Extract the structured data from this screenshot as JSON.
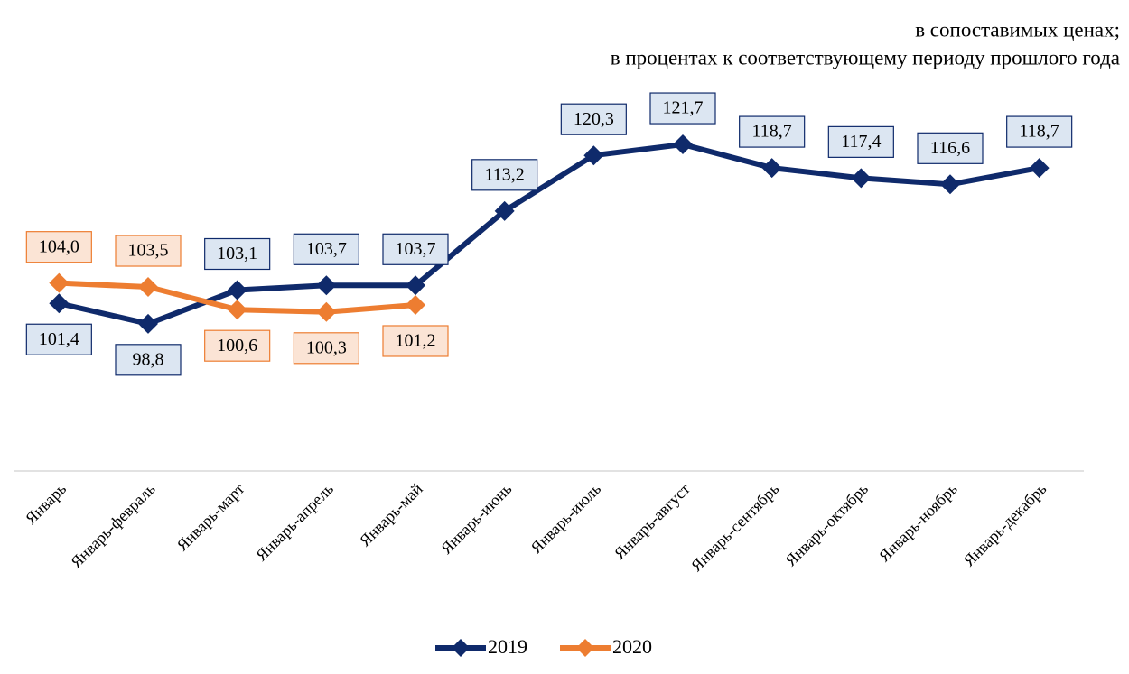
{
  "chart_data": {
    "type": "line",
    "subtitle": [
      "в сопоставимых ценах;",
      "в процентах к соответствующему периоду прошлого года"
    ],
    "categories": [
      "Январь",
      "Январь-февраль",
      "Январь-март",
      "Январь-апрель",
      "Январь-май",
      "Январь-июнь",
      "Январь-июль",
      "Январь-август",
      "Январь-сентябрь",
      "Январь-октябрь",
      "Январь-ноябрь",
      "Январь-декабрь"
    ],
    "series": [
      {
        "name": "2019",
        "color": "#0f2a6b",
        "label_fill": "#dce6f2",
        "values": [
          101.4,
          98.8,
          103.1,
          103.7,
          103.7,
          113.2,
          120.3,
          121.7,
          118.7,
          117.4,
          116.6,
          118.7
        ],
        "value_labels": [
          "101,4",
          "98,8",
          "103,1",
          "103,7",
          "103,7",
          "113,2",
          "120,3",
          "121,7",
          "118,7",
          "117,4",
          "116,6",
          "118,7"
        ]
      },
      {
        "name": "2020",
        "color": "#ed7d31",
        "label_fill": "#fbe4d5",
        "values": [
          104.0,
          103.5,
          100.6,
          100.3,
          101.2,
          null,
          null,
          null,
          null,
          null,
          null,
          null
        ],
        "value_labels": [
          "104,0",
          "103,5",
          "100,6",
          "100,3",
          "101,2",
          null,
          null,
          null,
          null,
          null,
          null,
          null
        ]
      }
    ],
    "ylim": [
      80,
      130
    ]
  }
}
